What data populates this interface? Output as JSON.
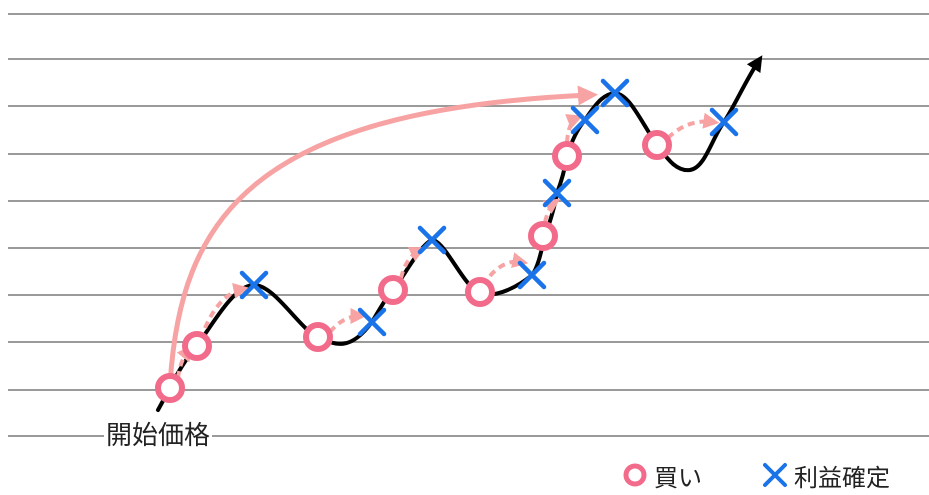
{
  "labels": {
    "start_price": "開始価格"
  },
  "legend": {
    "buy": "買い",
    "take_profit": "利益確定"
  },
  "colors": {
    "buy_marker": "#f26b8a",
    "take_profit_marker": "#1a73e8",
    "arrow": "#f7a3a3",
    "price_line": "#000000",
    "grid": "#9a9a9a"
  },
  "icons": {
    "buy": "circle-icon",
    "take_profit": "cross-icon"
  }
}
